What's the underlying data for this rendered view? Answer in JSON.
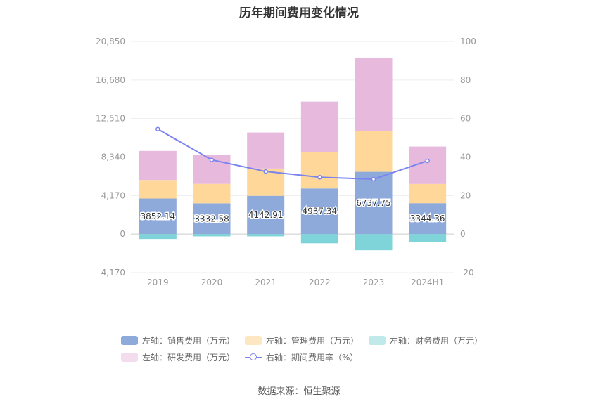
{
  "chart_data": {
    "type": "bar",
    "title": "历年期间费用变化情况",
    "categories": [
      "2019",
      "2020",
      "2021",
      "2022",
      "2023",
      "2024H1"
    ],
    "stacked": true,
    "left_axis": {
      "range": [
        -4170,
        20850
      ],
      "ticks": [
        "20,850",
        "16,680",
        "12,510",
        "8,340",
        "4,170",
        "0",
        "-4,170"
      ],
      "tick_values": [
        20850,
        16680,
        12510,
        8340,
        4170,
        0,
        -4170
      ]
    },
    "right_axis": {
      "range": [
        -20,
        100
      ],
      "ticks": [
        "100",
        "80",
        "60",
        "40",
        "20",
        "0",
        "-20"
      ],
      "tick_values": [
        100,
        80,
        60,
        40,
        20,
        0,
        -20
      ]
    },
    "series": [
      {
        "name": "左轴：销售费用（万元）",
        "axis": "left",
        "kind": "bar",
        "color": "#8eaadb",
        "values": [
          3852.14,
          3332.58,
          4142.91,
          4937.34,
          6737.75,
          3344.36
        ],
        "labels": [
          "3852.14",
          "3332.58",
          "4142.91",
          "4937.34",
          "6737.75",
          "3344.36"
        ]
      },
      {
        "name": "左轴：管理费用（万元）",
        "axis": "left",
        "kind": "bar",
        "color": "#ffd899",
        "values": [
          2000,
          2100,
          2950,
          3950,
          4400,
          2080
        ]
      },
      {
        "name": "左轴：财务费用（万元）",
        "axis": "left",
        "kind": "bar",
        "color": "#7fd4d9",
        "values": [
          -530,
          -250,
          -250,
          -1000,
          -1750,
          -900
        ]
      },
      {
        "name": "左轴：研发费用（万元）",
        "axis": "left",
        "kind": "bar",
        "color": "#e7b9dc",
        "values": [
          3150,
          3150,
          3900,
          5450,
          7950,
          4050
        ]
      },
      {
        "name": "右轴：期间费用率（%）",
        "axis": "right",
        "kind": "line",
        "color": "#7b83ee",
        "values": [
          54.5,
          38.5,
          32.5,
          29.5,
          28.5,
          38
        ]
      }
    ],
    "legend_position": "bottom",
    "grid": true
  },
  "legend": {
    "rows": [
      [
        {
          "label": "左轴：销售费用（万元）",
          "color": "#8eaadb",
          "kind": "bar"
        },
        {
          "label": "左轴：管理费用（万元）",
          "color": "#fde7c3",
          "kind": "bar"
        },
        {
          "label": "左轴：财务费用（万元）",
          "color": "#c0e9ea",
          "kind": "bar"
        }
      ],
      [
        {
          "label": "左轴：研发费用（万元）",
          "color": "#f3dced",
          "kind": "bar"
        },
        {
          "label": "右轴：期间费用率（%）",
          "color": "#7b83ee",
          "kind": "line"
        }
      ]
    ]
  },
  "footer": {
    "source": "数据来源：恒生聚源"
  }
}
